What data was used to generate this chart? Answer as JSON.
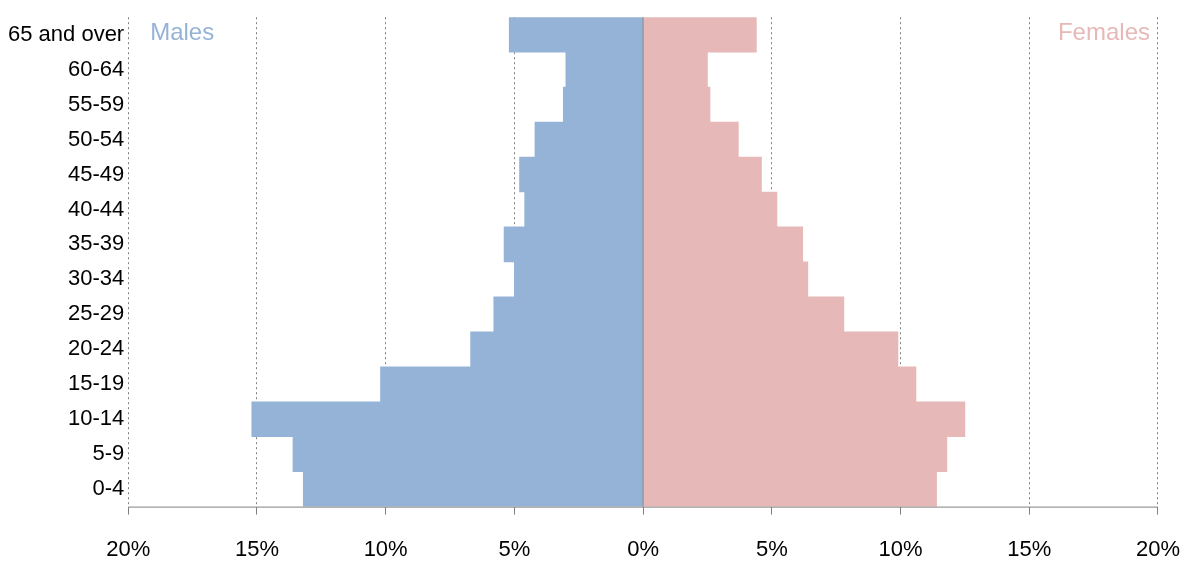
{
  "chart_data": {
    "type": "bar",
    "orientation": "horizontal",
    "stacked": true,
    "categories": [
      "65 and over",
      "60-64",
      "55-59",
      "50-54",
      "45-49",
      "40-44",
      "35-39",
      "30-34",
      "25-29",
      "20-24",
      "15-19",
      "10-14",
      "5-9",
      "0-4"
    ],
    "series": [
      {
        "name": "Males",
        "color": "#95b3d7",
        "values": [
          -5.2,
          -3.0,
          -3.1,
          -4.2,
          -4.8,
          -4.6,
          -5.4,
          -5.0,
          -5.8,
          -6.7,
          -10.2,
          -15.2,
          -13.6,
          -13.2
        ]
      },
      {
        "name": "Females",
        "color": "#e6b8b7",
        "values": [
          4.4,
          2.5,
          2.6,
          3.7,
          4.6,
          5.2,
          6.2,
          6.4,
          7.8,
          9.9,
          10.6,
          12.5,
          11.8,
          11.4
        ]
      }
    ],
    "xlim": [
      -20,
      20
    ],
    "xticks": [
      {
        "value": -20,
        "label": "20%"
      },
      {
        "value": -15,
        "label": "15%"
      },
      {
        "value": -10,
        "label": "10%"
      },
      {
        "value": -5,
        "label": "5%"
      },
      {
        "value": 0,
        "label": "0%"
      },
      {
        "value": 5,
        "label": "5%"
      },
      {
        "value": 10,
        "label": "10%"
      },
      {
        "value": 15,
        "label": "15%"
      },
      {
        "value": 20,
        "label": "20%"
      }
    ],
    "grid": "x",
    "legend": false
  }
}
